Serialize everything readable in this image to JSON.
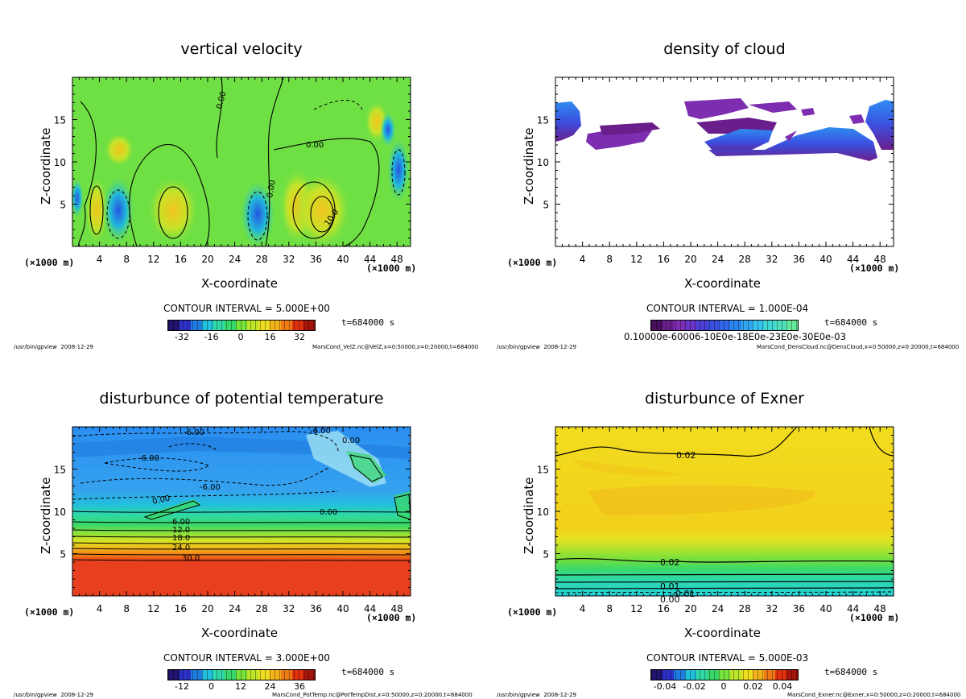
{
  "footer_tool": "/usr/bin/gpview",
  "footer_date": "2008-12-29",
  "time_label": "t=684000 s",
  "x_axis_label": "X-coordinate",
  "y_axis_label": "Z-coordinate",
  "x_unit": "(×1000 m)",
  "chart_data": [
    {
      "type": "heatmap",
      "title": "vertical velocity",
      "xlabel": "X-coordinate",
      "ylabel": "Z-coordinate",
      "xlim": [
        0,
        50
      ],
      "ylim": [
        0,
        20
      ],
      "x_ticks": [
        "4",
        "8",
        "12",
        "16",
        "20",
        "24",
        "28",
        "32",
        "36",
        "40",
        "44",
        "48"
      ],
      "y_ticks": [
        "5",
        "10",
        "15"
      ],
      "contour_interval": "CONTOUR INTERVAL = 5.000E+00",
      "colorbar_ticks": [
        "-32",
        "-16",
        "0",
        "16",
        "32"
      ],
      "contour_labels": [
        "0.00",
        "0.00",
        "0.00",
        "10.0"
      ],
      "source": "MarsCond_VelZ.nc@VelZ,x=0:50000,z=0:20000,t=684000",
      "colormap": [
        "#20146e",
        "#2b30c8",
        "#1f7be0",
        "#22c0dc",
        "#2fd8a6",
        "#39d86a",
        "#78e33a",
        "#bde52a",
        "#eede20",
        "#f2b21a",
        "#f07a14",
        "#e0300c",
        "#a4140a"
      ]
    },
    {
      "type": "heatmap",
      "title": "density of cloud",
      "xlabel": "X-coordinate",
      "ylabel": "Z-coordinate",
      "xlim": [
        0,
        50
      ],
      "ylim": [
        0,
        20
      ],
      "x_ticks": [
        "4",
        "8",
        "12",
        "16",
        "20",
        "24",
        "28",
        "32",
        "36",
        "40",
        "44",
        "48"
      ],
      "y_ticks": [
        "5",
        "10",
        "15"
      ],
      "contour_interval": "CONTOUR INTERVAL = 1.000E-04",
      "colorbar_label": "0.10000e-60006-10E0e-18E0e-23E0e-30E0e-03",
      "source": "MarsCond_DensCloud.nc@DensCloud,x=0:50000,z=0:20000,t=684000",
      "colormap": [
        "#4a0e5e",
        "#6a1e8c",
        "#7d2db0",
        "#6a35c8",
        "#4b3fd6",
        "#3b4fe0",
        "#2f66ea",
        "#2a86ef",
        "#2fa6ef",
        "#36c4ec",
        "#3fd6d6",
        "#4ee0bc",
        "#66e89a"
      ]
    },
    {
      "type": "heatmap",
      "title": "disturbunce of potential temperature",
      "xlabel": "X-coordinate",
      "ylabel": "Z-coordinate",
      "xlim": [
        0,
        50
      ],
      "ylim": [
        0,
        20
      ],
      "x_ticks": [
        "4",
        "8",
        "12",
        "16",
        "20",
        "24",
        "28",
        "32",
        "36",
        "40",
        "44",
        "48"
      ],
      "y_ticks": [
        "5",
        "10",
        "15"
      ],
      "contour_interval": "CONTOUR INTERVAL = 3.000E+00",
      "colorbar_ticks": [
        "-12",
        "0",
        "12",
        "24",
        "36"
      ],
      "contour_labels": [
        "-6.00",
        "-6.00",
        "-6.00",
        "-6.00",
        "0.00",
        "0.00",
        "0.00",
        "6.00",
        "12.0",
        "18.0",
        "24.0",
        "30.0"
      ],
      "source": "MarsCond_PotTemp.nc@PotTempDist,x=0:50000,z=0:20000,t=684000",
      "colormap": [
        "#20146e",
        "#2b30c8",
        "#1f7be0",
        "#22c0dc",
        "#2fd8a6",
        "#39d86a",
        "#78e33a",
        "#bde52a",
        "#eede20",
        "#f2b21a",
        "#f07a14",
        "#e0300c",
        "#a4140a"
      ]
    },
    {
      "type": "heatmap",
      "title": "disturbunce of Exner",
      "xlabel": "X-coordinate",
      "ylabel": "Z-coordinate",
      "xlim": [
        0,
        50
      ],
      "ylim": [
        0,
        20
      ],
      "x_ticks": [
        "4",
        "8",
        "12",
        "16",
        "20",
        "24",
        "28",
        "32",
        "36",
        "40",
        "44",
        "48"
      ],
      "y_ticks": [
        "5",
        "10",
        "15"
      ],
      "contour_interval": "CONTOUR INTERVAL = 5.000E-03",
      "colorbar_ticks": [
        "-0.04",
        "-0.02",
        "0",
        "0.02",
        "0.04"
      ],
      "contour_labels": [
        "0.02",
        "0.02",
        "0.01",
        "0.00",
        "-0.01"
      ],
      "source": "MarsCond_Exner.nc@Exner,x=0:50000,z=0:20000,t=684000",
      "colormap": [
        "#20146e",
        "#2b30c8",
        "#1f7be0",
        "#22c0dc",
        "#2fd8a6",
        "#39d86a",
        "#78e33a",
        "#bde52a",
        "#eede20",
        "#f2b21a",
        "#f07a14",
        "#e0300c",
        "#a4140a"
      ]
    }
  ]
}
